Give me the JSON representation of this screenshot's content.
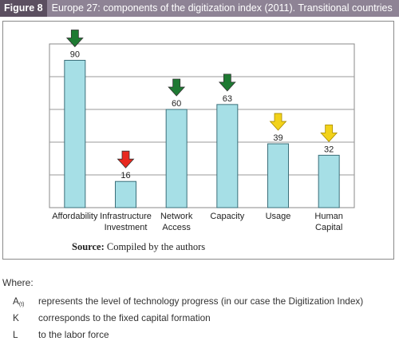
{
  "figure": {
    "tag": "Figure 8",
    "title": "Europe 27: components of the digitization index (2011). Transitional countries"
  },
  "chart_data": {
    "type": "bar",
    "categories": [
      [
        "Affordability"
      ],
      [
        "Infrastructure",
        "Investment"
      ],
      [
        "Network",
        "Access"
      ],
      [
        "Capacity"
      ],
      [
        "Usage"
      ],
      [
        "Human",
        "Capital"
      ]
    ],
    "values": [
      90,
      16,
      60,
      63,
      39,
      32
    ],
    "value_labels": [
      "90",
      "16",
      "60",
      "63",
      "39",
      "32"
    ],
    "arrows": [
      "green",
      "red",
      "green",
      "green",
      "yellow",
      "yellow"
    ],
    "ylim": [
      0,
      100
    ],
    "grid": true,
    "colors": {
      "bar": "#a6dfe6",
      "bar_stroke": "#3b6f7a",
      "green": "#1e7a32",
      "red": "#e8281f",
      "yellow": "#f2d21a",
      "grid": "#9a9a9a"
    }
  },
  "source": {
    "label": "Source:",
    "text": " Compiled by the authors"
  },
  "notes": {
    "intro": "Where:",
    "definitions": [
      {
        "symbol": "A",
        "subscript": "(t)",
        "text": "represents the level of technology progress (in our case the Digitization Index)"
      },
      {
        "symbol": "K",
        "subscript": "",
        "text": "corresponds to the fixed capital formation"
      },
      {
        "symbol": "L",
        "subscript": "",
        "text": "to the labor force"
      }
    ]
  }
}
